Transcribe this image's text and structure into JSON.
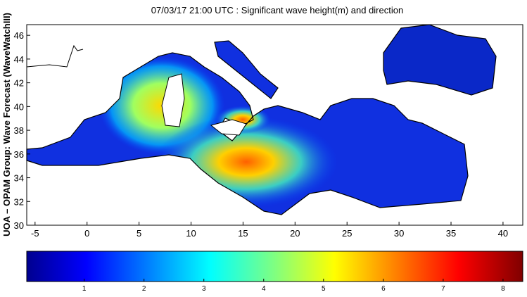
{
  "title": "07/03/17 21:00 UTC : Significant wave height(m) and direction",
  "y_label": "UOA – OPAM Group: Wave Forecast  (WaveWatchIII)",
  "map": {
    "xlim": [
      -5.8,
      41.9
    ],
    "ylim": [
      30,
      46.9
    ],
    "xticks": [
      -5,
      0,
      5,
      10,
      15,
      20,
      25,
      30,
      35,
      40
    ],
    "yticks": [
      30,
      32,
      34,
      36,
      38,
      40,
      42,
      44,
      46
    ]
  },
  "colorbar": {
    "lim": [
      0.04,
      8.33
    ],
    "ticks": [
      1,
      2,
      3,
      4,
      5,
      6,
      7,
      8
    ]
  }
}
